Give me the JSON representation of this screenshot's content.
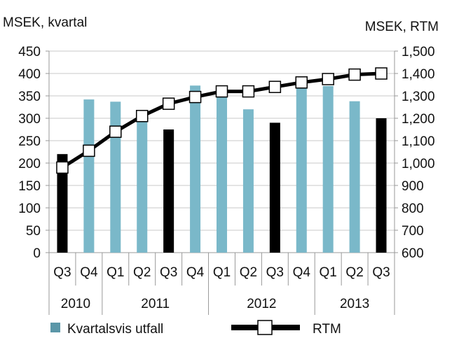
{
  "chart_data": {
    "type": "bar",
    "categories": [
      "Q3",
      "Q4",
      "Q1",
      "Q2",
      "Q3",
      "Q4",
      "Q1",
      "Q2",
      "Q3",
      "Q4",
      "Q1",
      "Q2",
      "Q3"
    ],
    "years": [
      {
        "label": "2010",
        "start": 0,
        "end": 2
      },
      {
        "label": "2011",
        "start": 2,
        "end": 6
      },
      {
        "label": "2012",
        "start": 6,
        "end": 10
      },
      {
        "label": "2013",
        "start": 10,
        "end": 13
      }
    ],
    "series": [
      {
        "name": "Kvartalsvis utfall",
        "type": "bar",
        "axis": "left",
        "values": [
          220,
          342,
          337,
          300,
          275,
          373,
          362,
          320,
          290,
          380,
          372,
          338,
          300
        ],
        "bar_colors": [
          "#000000",
          "#7ab8c9",
          "#7ab8c9",
          "#7ab8c9",
          "#000000",
          "#7ab8c9",
          "#7ab8c9",
          "#7ab8c9",
          "#000000",
          "#7ab8c9",
          "#7ab8c9",
          "#7ab8c9",
          "#000000"
        ]
      },
      {
        "name": "RTM",
        "type": "line",
        "axis": "right",
        "values": [
          980,
          1055,
          1140,
          1210,
          1265,
          1295,
          1320,
          1320,
          1340,
          1360,
          1375,
          1395,
          1400
        ]
      }
    ],
    "left_axis": {
      "label": "MSEK, kvartal",
      "min": 0,
      "max": 450,
      "step": 50,
      "ticks": [
        "0",
        "50",
        "100",
        "150",
        "200",
        "250",
        "300",
        "350",
        "400",
        "450"
      ]
    },
    "right_axis": {
      "label": "MSEK, RTM",
      "min": 600,
      "max": 1500,
      "step": 100,
      "ticks": [
        "600",
        "700",
        "800",
        "900",
        "1,000",
        "1,100",
        "1,200",
        "1,300",
        "1,400",
        "1,500"
      ]
    },
    "grid": true,
    "legend_position": "bottom",
    "colors": {
      "bar_light": "#7ab8c9",
      "bar_dark": "#000000",
      "legend_swatch": "#5b97a8",
      "line": "#000000",
      "grid": "#c8c8c8"
    }
  }
}
